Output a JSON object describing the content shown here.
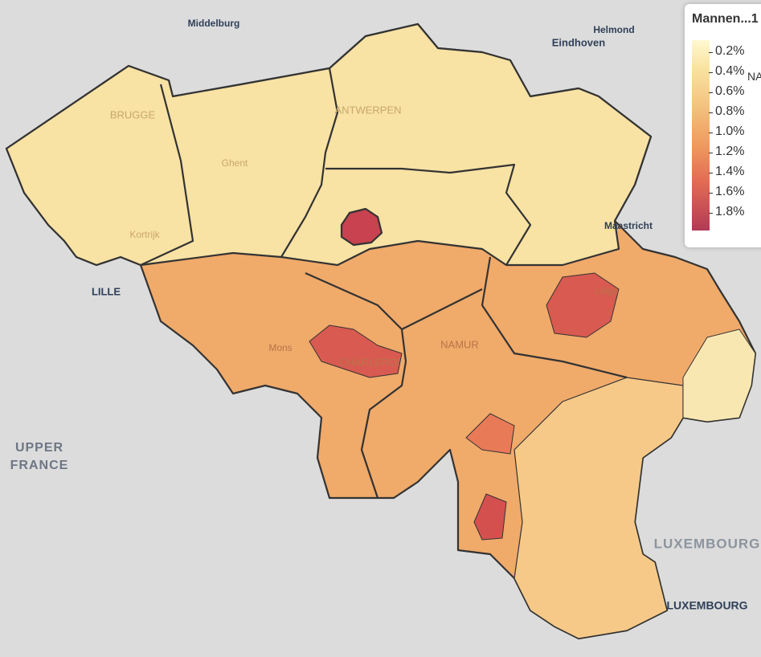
{
  "legend": {
    "title": "Mannen...1",
    "labels": [
      "0.2%",
      "0.4%",
      "0.6%",
      "0.8%",
      "1.0%",
      "1.2%",
      "1.4%",
      "1.6%",
      "1.8%"
    ],
    "na_label": "NA"
  },
  "places": [
    {
      "label": "Middelburg"
    },
    {
      "label": "Helmond"
    },
    {
      "label": "Eindhoven"
    },
    {
      "label": "BRUGGE"
    },
    {
      "label": "ANTWERPEN"
    },
    {
      "label": "Ghent"
    },
    {
      "label": "Kortrijk"
    },
    {
      "label": "LILLE"
    },
    {
      "label": "Mons"
    },
    {
      "label": "CHARLEROI"
    },
    {
      "label": "NAMUR"
    },
    {
      "label": "Liège"
    },
    {
      "label": "Maastricht"
    },
    {
      "label": "UPPER"
    },
    {
      "label": "FRANCE"
    },
    {
      "label": "LUXEMBOURG"
    },
    {
      "label": "LUXEMBOURG"
    }
  ]
}
